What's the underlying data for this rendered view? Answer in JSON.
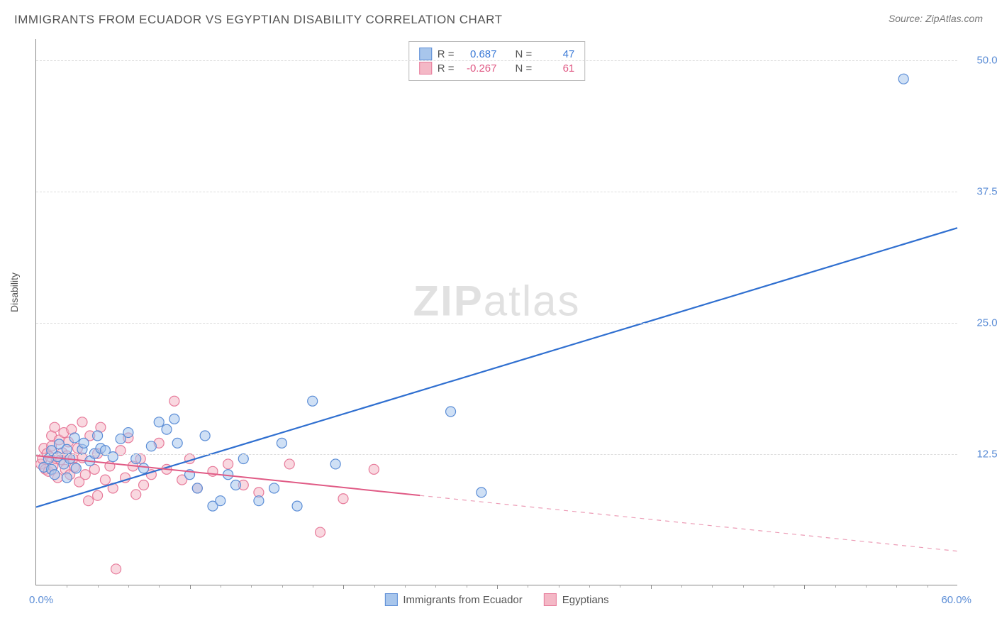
{
  "title": "IMMIGRANTS FROM ECUADOR VS EGYPTIAN DISABILITY CORRELATION CHART",
  "source": "Source: ZipAtlas.com",
  "watermark_bold": "ZIP",
  "watermark_light": "atlas",
  "ylabel": "Disability",
  "chart": {
    "type": "scatter",
    "xlim": [
      0,
      60
    ],
    "ylim": [
      0,
      52
    ],
    "x_origin_label": "0.0%",
    "x_max_label": "60.0%",
    "x_major_ticks": [
      10,
      20,
      30,
      40,
      50
    ],
    "x_minor_step": 2,
    "y_ticks": [
      12.5,
      25.0,
      37.5,
      50.0
    ],
    "y_tick_labels": [
      "12.5%",
      "25.0%",
      "37.5%",
      "50.0%"
    ],
    "grid_color": "#dddddd",
    "background_color": "#ffffff",
    "series": [
      {
        "name": "Immigrants from Ecuador",
        "color_fill": "#a8c6ec",
        "color_stroke": "#5b8dd6",
        "marker_r": 7,
        "R_label": "R =",
        "R_value": "0.687",
        "N_label": "N =",
        "N_value": "47",
        "R_color": "#3878d6",
        "line": {
          "x1": 0,
          "y1": 7.4,
          "x2": 60,
          "y2": 34.0,
          "color": "#2f6fd0",
          "width": 2.2,
          "solid_to_x": 60
        },
        "points": [
          [
            0.5,
            11.2
          ],
          [
            0.8,
            12.0
          ],
          [
            1.0,
            11.0
          ],
          [
            1.0,
            12.8
          ],
          [
            1.2,
            10.5
          ],
          [
            1.4,
            12.2
          ],
          [
            1.5,
            13.4
          ],
          [
            1.8,
            11.5
          ],
          [
            2.0,
            12.9
          ],
          [
            2.0,
            10.2
          ],
          [
            2.2,
            12.0
          ],
          [
            2.5,
            14.0
          ],
          [
            2.6,
            11.1
          ],
          [
            3.0,
            12.9
          ],
          [
            3.1,
            13.5
          ],
          [
            3.5,
            11.8
          ],
          [
            3.8,
            12.5
          ],
          [
            4.0,
            14.2
          ],
          [
            4.2,
            13.0
          ],
          [
            4.5,
            12.8
          ],
          [
            5.0,
            12.2
          ],
          [
            5.5,
            13.9
          ],
          [
            6.0,
            14.5
          ],
          [
            6.5,
            12.0
          ],
          [
            7.0,
            11.1
          ],
          [
            7.5,
            13.2
          ],
          [
            8.0,
            15.5
          ],
          [
            8.5,
            14.8
          ],
          [
            9.0,
            15.8
          ],
          [
            9.2,
            13.5
          ],
          [
            10.0,
            10.5
          ],
          [
            10.5,
            9.2
          ],
          [
            11.0,
            14.2
          ],
          [
            11.5,
            7.5
          ],
          [
            12.0,
            8.0
          ],
          [
            12.5,
            10.5
          ],
          [
            13.0,
            9.5
          ],
          [
            13.5,
            12.0
          ],
          [
            14.5,
            8.0
          ],
          [
            15.5,
            9.2
          ],
          [
            16.0,
            13.5
          ],
          [
            17.0,
            7.5
          ],
          [
            18.0,
            17.5
          ],
          [
            19.5,
            11.5
          ],
          [
            27.0,
            16.5
          ],
          [
            29.0,
            8.8
          ],
          [
            56.5,
            48.2
          ]
        ]
      },
      {
        "name": "Egyptians",
        "color_fill": "#f4b8c6",
        "color_stroke": "#e77a9a",
        "marker_r": 7,
        "R_label": "R =",
        "R_value": "-0.267",
        "N_label": "N =",
        "N_value": "61",
        "R_color": "#e05a85",
        "line": {
          "x1": 0,
          "y1": 12.3,
          "x2": 60,
          "y2": 3.2,
          "color": "#e05a85",
          "width": 2,
          "solid_to_x": 25
        },
        "points": [
          [
            0.3,
            11.5
          ],
          [
            0.4,
            12.0
          ],
          [
            0.5,
            13.0
          ],
          [
            0.6,
            11.0
          ],
          [
            0.7,
            12.5
          ],
          [
            0.8,
            10.8
          ],
          [
            0.9,
            12.2
          ],
          [
            1.0,
            13.2
          ],
          [
            1.0,
            14.2
          ],
          [
            1.1,
            11.3
          ],
          [
            1.2,
            15.0
          ],
          [
            1.3,
            12.0
          ],
          [
            1.4,
            10.2
          ],
          [
            1.5,
            13.8
          ],
          [
            1.6,
            11.9
          ],
          [
            1.7,
            12.6
          ],
          [
            1.8,
            14.5
          ],
          [
            1.9,
            11.0
          ],
          [
            2.0,
            12.3
          ],
          [
            2.1,
            13.6
          ],
          [
            2.2,
            10.5
          ],
          [
            2.3,
            14.8
          ],
          [
            2.4,
            12.0
          ],
          [
            2.5,
            11.2
          ],
          [
            2.7,
            13.0
          ],
          [
            2.8,
            9.8
          ],
          [
            3.0,
            15.5
          ],
          [
            3.0,
            12.1
          ],
          [
            3.2,
            10.5
          ],
          [
            3.4,
            8.0
          ],
          [
            3.5,
            14.2
          ],
          [
            3.8,
            11.0
          ],
          [
            4.0,
            12.5
          ],
          [
            4.0,
            8.5
          ],
          [
            4.2,
            15.0
          ],
          [
            4.5,
            10.0
          ],
          [
            4.8,
            11.3
          ],
          [
            5.0,
            9.2
          ],
          [
            5.2,
            1.5
          ],
          [
            5.5,
            12.8
          ],
          [
            5.8,
            10.2
          ],
          [
            6.0,
            14.0
          ],
          [
            6.3,
            11.3
          ],
          [
            6.5,
            8.6
          ],
          [
            6.8,
            12.0
          ],
          [
            7.0,
            9.5
          ],
          [
            7.5,
            10.5
          ],
          [
            8.0,
            13.5
          ],
          [
            8.5,
            11.0
          ],
          [
            9.0,
            17.5
          ],
          [
            9.5,
            10.0
          ],
          [
            10.0,
            12.0
          ],
          [
            10.5,
            9.2
          ],
          [
            11.5,
            10.8
          ],
          [
            12.5,
            11.5
          ],
          [
            13.5,
            9.5
          ],
          [
            14.5,
            8.8
          ],
          [
            16.5,
            11.5
          ],
          [
            18.5,
            5.0
          ],
          [
            20.0,
            8.2
          ],
          [
            22.0,
            11.0
          ]
        ]
      }
    ]
  }
}
